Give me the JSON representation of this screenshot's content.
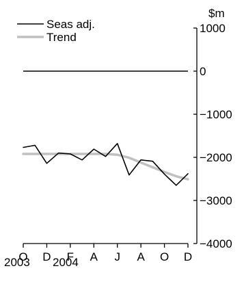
{
  "chart_data": {
    "type": "line",
    "unit_label": "$m",
    "x": [
      "2003-10",
      "2003-11",
      "2003-12",
      "2004-01",
      "2004-02",
      "2004-03",
      "2004-04",
      "2004-05",
      "2004-06",
      "2004-07",
      "2004-08",
      "2004-09",
      "2004-10",
      "2004-11",
      "2004-12"
    ],
    "x_tick_labels": [
      "O",
      "D",
      "F",
      "A",
      "J",
      "A",
      "O",
      "D"
    ],
    "x_year_labels": [
      "2003",
      "2004"
    ],
    "ylim": [
      -4000,
      1000
    ],
    "y_ticks": [
      1000,
      0,
      -1000,
      -2000,
      -3000,
      -4000
    ],
    "y_tick_labels": [
      "1000",
      "0",
      "−1000",
      "−2000",
      "−3000",
      "−4000"
    ],
    "y_axis_side": "right",
    "reference_line": 0,
    "legend_placement": "top-left",
    "series": [
      {
        "name": "Seas adj.",
        "color": "#000000",
        "values": [
          -1770,
          -1720,
          -2140,
          -1900,
          -1920,
          -2060,
          -1810,
          -1980,
          -1680,
          -2410,
          -2060,
          -2090,
          -2390,
          -2650,
          -2380
        ]
      },
      {
        "name": "Trend",
        "color": "#c0c0c0",
        "values": [
          -1920,
          -1920,
          -1920,
          -1920,
          -1920,
          -1920,
          -1920,
          -1920,
          -1940,
          -2010,
          -2120,
          -2230,
          -2340,
          -2440,
          -2510
        ]
      }
    ]
  }
}
